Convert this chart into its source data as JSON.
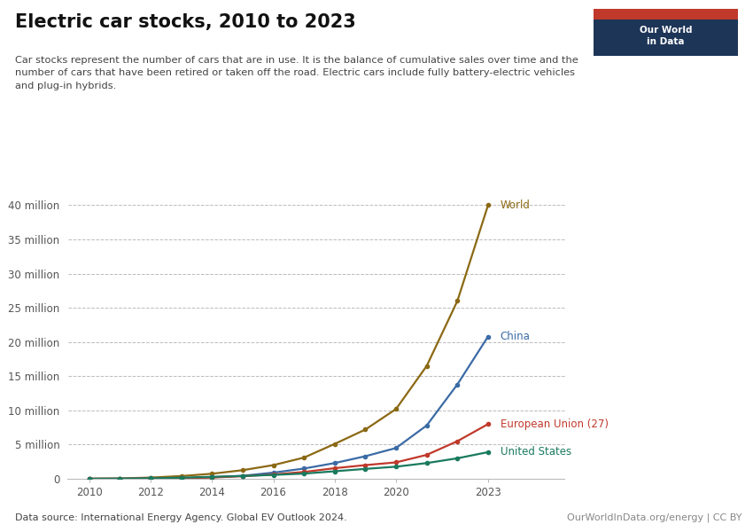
{
  "title": "Electric car stocks, 2010 to 2023",
  "subtitle": "Car stocks represent the number of cars that are in use. It is the balance of cumulative sales over time and the\nnumber of cars that have been retired or taken off the road. Electric cars include fully battery-electric vehicles\nand plug-in hybrids.",
  "datasource": "Data source: International Energy Agency. Global EV Outlook 2024.",
  "credit": "OurWorldInData.org/energy | CC BY",
  "logo_text": "Our World\nin Data",
  "years": [
    2010,
    2011,
    2012,
    2013,
    2014,
    2015,
    2016,
    2017,
    2018,
    2019,
    2020,
    2021,
    2022,
    2023
  ],
  "world": [
    0.017,
    0.05,
    0.18,
    0.4,
    0.74,
    1.26,
    2.0,
    3.1,
    5.1,
    7.2,
    10.2,
    16.5,
    26.0,
    40.0
  ],
  "china": [
    0.001,
    0.01,
    0.04,
    0.08,
    0.23,
    0.44,
    0.9,
    1.5,
    2.3,
    3.3,
    4.5,
    7.8,
    13.8,
    20.8
  ],
  "eu27": [
    0.005,
    0.015,
    0.04,
    0.09,
    0.19,
    0.38,
    0.63,
    1.0,
    1.55,
    2.0,
    2.4,
    3.5,
    5.5,
    8.0
  ],
  "us": [
    0.004,
    0.02,
    0.07,
    0.17,
    0.29,
    0.41,
    0.57,
    0.76,
    1.1,
    1.45,
    1.77,
    2.3,
    3.0,
    3.9
  ],
  "world_color": "#8B6914",
  "china_color": "#3B6BA5",
  "eu27_color": "#C0392B",
  "us_color": "#1A7A5E",
  "background_color": "#ffffff",
  "grid_color": "#bbbbbb",
  "ylim": [
    0,
    42000000
  ],
  "yticks": [
    0,
    5000000,
    10000000,
    15000000,
    20000000,
    25000000,
    30000000,
    35000000,
    40000000
  ],
  "ytick_labels": [
    "0",
    "5 million",
    "10 million",
    "15 million",
    "20 million",
    "25 million",
    "30 million",
    "35 million",
    "40 million"
  ],
  "xticks": [
    2010,
    2012,
    2014,
    2016,
    2018,
    2020,
    2023
  ]
}
